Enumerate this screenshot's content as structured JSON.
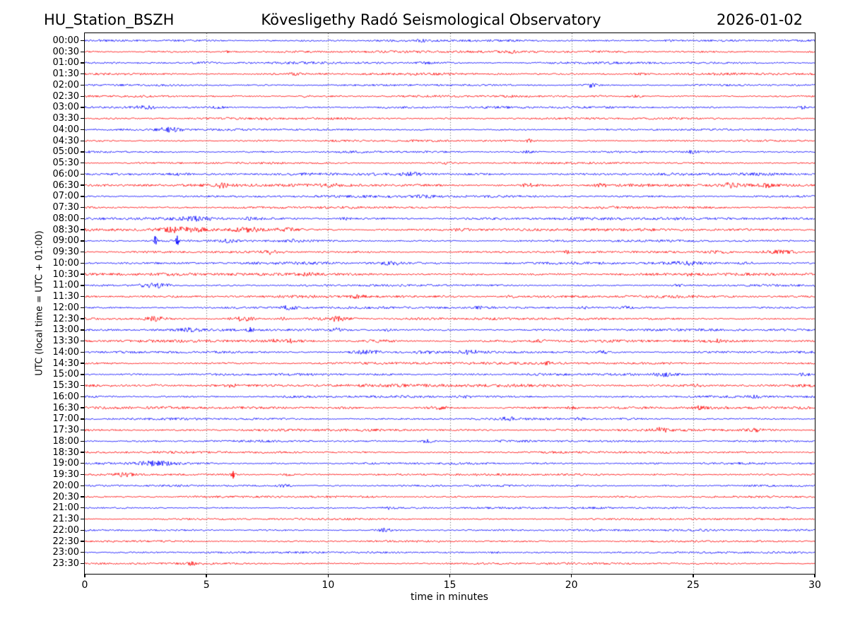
{
  "header": {
    "station": "HU_Station_BSZH",
    "observatory": "Kövesligethy Radó Seismological Observatory",
    "date": "2026-01-02"
  },
  "chart_data": {
    "type": "line",
    "subtype": "helicorder-dayplot",
    "title": "Kövesligethy Radó Seismological Observatory",
    "xlabel": "time in minutes",
    "ylabel": "UTC (local time = UTC + 01:00)",
    "xlim": [
      0,
      30
    ],
    "x_ticks": [
      0,
      5,
      10,
      15,
      20,
      25,
      30
    ],
    "grid_minutes": [
      5,
      10,
      15,
      20,
      25
    ],
    "grid_style": "dotted",
    "legend": "none",
    "minutes_per_line": 30,
    "colors": {
      "even_trace": "#0000ff",
      "odd_trace": "#ff0000",
      "frame": "#000000",
      "grid": "#444444",
      "text": "#000000",
      "background": "#ffffff"
    },
    "event_format": "[start_minute, width_minutes, extra_amplitude_px]",
    "rows": [
      {
        "label": "00:00",
        "color": "#0000ff",
        "noise": 1.2,
        "events": [
          [
            13.8,
            0.5,
            1.2
          ],
          [
            24.0,
            0.4,
            1.0
          ]
        ]
      },
      {
        "label": "00:30",
        "color": "#ff0000",
        "noise": 1.3,
        "events": [
          [
            5.8,
            0.3,
            1.4
          ],
          [
            17.6,
            0.3,
            1.2
          ]
        ]
      },
      {
        "label": "01:00",
        "color": "#0000ff",
        "noise": 1.3,
        "events": [
          [
            4.9,
            0.8,
            1.2
          ],
          [
            14.0,
            0.5,
            1.0
          ]
        ]
      },
      {
        "label": "01:30",
        "color": "#ff0000",
        "noise": 1.3,
        "events": [
          [
            8.6,
            0.4,
            1.2
          ],
          [
            22.8,
            0.5,
            1.0
          ]
        ]
      },
      {
        "label": "02:00",
        "color": "#0000ff",
        "noise": 1.1,
        "events": [
          [
            20.8,
            0.4,
            2.8
          ]
        ]
      },
      {
        "label": "02:30",
        "color": "#ff0000",
        "noise": 1.2,
        "events": [
          [
            9.1,
            0.3,
            1.2
          ],
          [
            22.7,
            0.4,
            1.2
          ]
        ]
      },
      {
        "label": "03:00",
        "color": "#0000ff",
        "noise": 1.2,
        "events": [
          [
            2.5,
            0.9,
            2.2
          ],
          [
            5.5,
            0.5,
            1.2
          ],
          [
            29.5,
            0.25,
            1.8
          ]
        ]
      },
      {
        "label": "03:30",
        "color": "#ff0000",
        "noise": 1.2,
        "events": [
          [
            7.5,
            0.4,
            1.2
          ]
        ]
      },
      {
        "label": "04:00",
        "color": "#0000ff",
        "noise": 1.1,
        "events": [
          [
            3.5,
            0.8,
            2.8
          ]
        ]
      },
      {
        "label": "04:30",
        "color": "#ff0000",
        "noise": 1.1,
        "events": [
          [
            18.3,
            0.25,
            2.2
          ]
        ]
      },
      {
        "label": "05:00",
        "color": "#0000ff",
        "noise": 1.1,
        "events": [
          [
            18.2,
            0.5,
            1.2
          ],
          [
            25.0,
            0.4,
            1.2
          ]
        ]
      },
      {
        "label": "05:30",
        "color": "#ff0000",
        "noise": 1.1,
        "events": [
          [
            14.8,
            0.6,
            1.2
          ]
        ]
      },
      {
        "label": "06:00",
        "color": "#0000ff",
        "noise": 1.5,
        "events": [
          [
            3.8,
            0.7,
            1.6
          ],
          [
            13.4,
            0.6,
            1.8
          ]
        ]
      },
      {
        "label": "06:30",
        "color": "#ff0000",
        "noise": 1.6,
        "events": [
          [
            5.6,
            0.5,
            2.2
          ],
          [
            10.1,
            0.5,
            1.6
          ],
          [
            18.2,
            0.5,
            1.8
          ],
          [
            21.2,
            0.5,
            1.8
          ],
          [
            26.6,
            0.6,
            2.6
          ],
          [
            28.0,
            0.4,
            2.2
          ]
        ]
      },
      {
        "label": "07:00",
        "color": "#0000ff",
        "noise": 1.4,
        "events": [
          [
            14.0,
            0.6,
            1.6
          ]
        ]
      },
      {
        "label": "07:30",
        "color": "#ff0000",
        "noise": 1.3,
        "events": []
      },
      {
        "label": "08:00",
        "color": "#0000ff",
        "noise": 1.5,
        "events": [
          [
            4.6,
            1.1,
            2.2
          ],
          [
            6.9,
            0.6,
            1.6
          ],
          [
            10.7,
            0.5,
            1.4
          ]
        ]
      },
      {
        "label": "08:30",
        "color": "#ff0000",
        "noise": 1.5,
        "events": [
          [
            4.0,
            1.4,
            3.0
          ],
          [
            6.7,
            1.1,
            2.8
          ],
          [
            8.3,
            0.8,
            1.8
          ],
          [
            15.5,
            0.6,
            1.6
          ]
        ]
      },
      {
        "label": "09:00",
        "color": "#0000ff",
        "noise": 1.2,
        "events": [
          [
            2.9,
            0.12,
            6.5
          ],
          [
            3.8,
            0.1,
            7.3
          ],
          [
            5.9,
            0.6,
            2.0
          ],
          [
            8.6,
            0.4,
            1.4
          ]
        ]
      },
      {
        "label": "09:30",
        "color": "#ff0000",
        "noise": 1.2,
        "events": [
          [
            7.7,
            0.5,
            2.6
          ],
          [
            19.8,
            0.3,
            1.4
          ],
          [
            26.0,
            1.0,
            1.8
          ],
          [
            28.5,
            1.2,
            2.0
          ]
        ]
      },
      {
        "label": "10:00",
        "color": "#0000ff",
        "noise": 1.5,
        "events": [
          [
            12.6,
            0.7,
            1.9
          ],
          [
            24.8,
            0.9,
            1.9
          ],
          [
            27.2,
            0.5,
            1.5
          ]
        ]
      },
      {
        "label": "10:30",
        "color": "#ff0000",
        "noise": 1.5,
        "events": [
          [
            9.2,
            0.7,
            1.7
          ],
          [
            24.7,
            0.35,
            2.2
          ]
        ]
      },
      {
        "label": "11:00",
        "color": "#0000ff",
        "noise": 1.2,
        "events": [
          [
            2.9,
            1.0,
            2.9
          ],
          [
            24.3,
            0.4,
            1.5
          ]
        ]
      },
      {
        "label": "11:30",
        "color": "#ff0000",
        "noise": 1.5,
        "events": [
          [
            11.2,
            0.5,
            1.7
          ],
          [
            17.5,
            0.3,
            1.5
          ]
        ]
      },
      {
        "label": "12:00",
        "color": "#0000ff",
        "noise": 1.2,
        "events": [
          [
            8.4,
            0.6,
            2.4
          ],
          [
            16.3,
            0.4,
            1.4
          ],
          [
            20.6,
            0.5,
            1.6
          ],
          [
            22.3,
            0.4,
            1.4
          ]
        ]
      },
      {
        "label": "12:30",
        "color": "#ff0000",
        "noise": 1.3,
        "events": [
          [
            2.9,
            0.6,
            2.4
          ],
          [
            6.5,
            0.8,
            2.6
          ],
          [
            8.1,
            0.3,
            2.8
          ],
          [
            9.3,
            0.4,
            1.8
          ],
          [
            10.3,
            0.8,
            2.8
          ]
        ]
      },
      {
        "label": "13:00",
        "color": "#0000ff",
        "noise": 1.3,
        "events": [
          [
            4.3,
            0.6,
            2.0
          ],
          [
            6.8,
            0.2,
            3.8
          ],
          [
            10.4,
            0.5,
            1.8
          ],
          [
            12.4,
            0.4,
            1.6
          ]
        ]
      },
      {
        "label": "13:30",
        "color": "#ff0000",
        "noise": 1.5,
        "events": [
          [
            8.2,
            0.9,
            1.9
          ],
          [
            12.1,
            0.7,
            1.7
          ],
          [
            18.7,
            0.5,
            1.5
          ],
          [
            25.9,
            0.4,
            1.5
          ]
        ]
      },
      {
        "label": "14:00",
        "color": "#0000ff",
        "noise": 1.3,
        "events": [
          [
            11.6,
            1.0,
            2.3
          ],
          [
            13.9,
            0.7,
            1.9
          ],
          [
            15.8,
            0.6,
            2.1
          ],
          [
            21.3,
            0.4,
            1.4
          ]
        ]
      },
      {
        "label": "14:30",
        "color": "#ff0000",
        "noise": 1.4,
        "events": [
          [
            19.0,
            0.4,
            1.5
          ]
        ]
      },
      {
        "label": "15:00",
        "color": "#0000ff",
        "noise": 1.3,
        "events": [
          [
            23.8,
            0.8,
            2.2
          ],
          [
            29.6,
            0.35,
            1.9
          ]
        ]
      },
      {
        "label": "15:30",
        "color": "#ff0000",
        "noise": 1.7,
        "events": [
          [
            3.0,
            0.5,
            1.5
          ],
          [
            6.0,
            0.5,
            1.4
          ],
          [
            25.0,
            0.5,
            1.5
          ]
        ]
      },
      {
        "label": "16:00",
        "color": "#0000ff",
        "noise": 1.3,
        "events": [
          [
            15.6,
            0.5,
            1.4
          ],
          [
            27.5,
            0.4,
            1.5
          ]
        ]
      },
      {
        "label": "16:30",
        "color": "#ff0000",
        "noise": 1.5,
        "events": [
          [
            14.5,
            0.6,
            1.7
          ],
          [
            20.0,
            0.4,
            1.5
          ],
          [
            25.2,
            0.4,
            1.5
          ]
        ]
      },
      {
        "label": "17:00",
        "color": "#0000ff",
        "noise": 1.2,
        "events": [
          [
            17.4,
            0.5,
            1.8
          ],
          [
            20.3,
            0.3,
            1.4
          ]
        ]
      },
      {
        "label": "17:30",
        "color": "#ff0000",
        "noise": 1.4,
        "events": [
          [
            23.7,
            0.4,
            2.4
          ],
          [
            27.6,
            0.4,
            1.5
          ]
        ]
      },
      {
        "label": "18:00",
        "color": "#0000ff",
        "noise": 1.2,
        "events": [
          [
            14.1,
            0.5,
            2.0
          ]
        ]
      },
      {
        "label": "18:30",
        "color": "#ff0000",
        "noise": 1.2,
        "events": []
      },
      {
        "label": "19:00",
        "color": "#0000ff",
        "noise": 1.2,
        "events": [
          [
            2.9,
            1.2,
            3.0
          ]
        ]
      },
      {
        "label": "19:30",
        "color": "#ff0000",
        "noise": 1.2,
        "events": [
          [
            1.6,
            0.5,
            2.4
          ],
          [
            6.1,
            0.12,
            4.8
          ],
          [
            8.3,
            0.3,
            1.4
          ]
        ]
      },
      {
        "label": "20:00",
        "color": "#0000ff",
        "noise": 1.1,
        "events": [
          [
            8.2,
            0.45,
            2.2
          ]
        ]
      },
      {
        "label": "20:30",
        "color": "#ff0000",
        "noise": 1.1,
        "events": []
      },
      {
        "label": "21:00",
        "color": "#0000ff",
        "noise": 1.1,
        "events": [
          [
            12.4,
            0.4,
            1.6
          ],
          [
            29.0,
            0.4,
            1.4
          ]
        ]
      },
      {
        "label": "21:30",
        "color": "#ff0000",
        "noise": 1.1,
        "events": []
      },
      {
        "label": "22:00",
        "color": "#0000ff",
        "noise": 1.1,
        "events": [
          [
            12.4,
            0.55,
            2.4
          ]
        ]
      },
      {
        "label": "22:30",
        "color": "#ff0000",
        "noise": 1.1,
        "events": []
      },
      {
        "label": "23:00",
        "color": "#0000ff",
        "noise": 1.1,
        "events": [
          [
            16.8,
            0.4,
            1.2
          ]
        ]
      },
      {
        "label": "23:30",
        "color": "#ff0000",
        "noise": 1.1,
        "events": [
          [
            4.4,
            0.2,
            3.0
          ]
        ]
      }
    ]
  }
}
